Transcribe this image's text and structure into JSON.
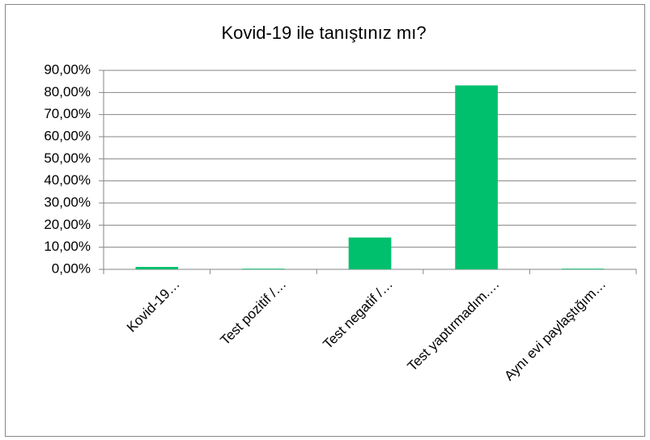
{
  "chart_data": {
    "type": "bar",
    "title": "Kovid-19 ile tanıştınız mı?",
    "categories": [
      "Kovid-19…",
      "Test pozitif /…",
      "Test negatif /…",
      "Test yaptırmadım.…",
      "Aynı evi paylaştığım…"
    ],
    "values": [
      1.1,
      0.3,
      14.4,
      83.2,
      0.3
    ],
    "color": "#00c06e",
    "ylim": [
      0,
      90
    ],
    "yticks": [
      {
        "value": 0,
        "label": "0,00%"
      },
      {
        "value": 10,
        "label": "10,00%"
      },
      {
        "value": 20,
        "label": "20,00%"
      },
      {
        "value": 30,
        "label": "30,00%"
      },
      {
        "value": 40,
        "label": "40,00%"
      },
      {
        "value": 50,
        "label": "50,00%"
      },
      {
        "value": 60,
        "label": "60,00%"
      },
      {
        "value": 70,
        "label": "70,00%"
      },
      {
        "value": 80,
        "label": "80,00%"
      },
      {
        "value": 90,
        "label": "90,00%"
      }
    ],
    "grid": true
  }
}
